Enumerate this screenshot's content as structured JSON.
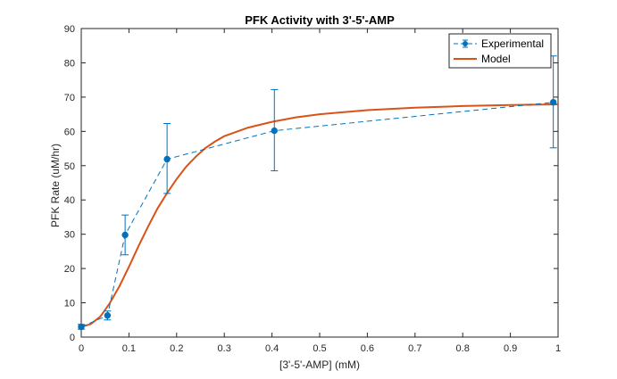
{
  "chart_data": {
    "type": "line",
    "title": "PFK Activity with 3'-5'-AMP",
    "xlabel": "[3'-5'-AMP] (mM)",
    "ylabel": "PFK Rate (uM/hr)",
    "xlim": [
      0,
      1
    ],
    "ylim": [
      0,
      90
    ],
    "xticks": [
      "0",
      "0.1",
      "0.2",
      "0.3",
      "0.4",
      "0.5",
      "0.6",
      "0.7",
      "0.8",
      "0.9",
      "1"
    ],
    "yticks": [
      "0",
      "10",
      "20",
      "30",
      "40",
      "50",
      "60",
      "70",
      "80",
      "90"
    ],
    "grid": false,
    "legend_position": "top-right",
    "series": [
      {
        "name": "Experimental",
        "style": "dashed-with-markers-and-errorbars",
        "color": "#0072BD",
        "x": [
          0,
          0.055,
          0.092,
          0.18,
          0.405,
          0.99
        ],
        "y": [
          3.0,
          6.3,
          29.8,
          51.9,
          60.2,
          68.5
        ],
        "err_low": [
          0.7,
          1.3,
          5.8,
          10.0,
          11.7,
          13.3
        ],
        "err_high": [
          0.7,
          1.3,
          5.8,
          10.4,
          12.0,
          13.5
        ]
      },
      {
        "name": "Model",
        "style": "solid",
        "color": "#D95319",
        "x": [
          0,
          0.02,
          0.04,
          0.06,
          0.08,
          0.1,
          0.12,
          0.14,
          0.16,
          0.18,
          0.2,
          0.22,
          0.24,
          0.26,
          0.28,
          0.3,
          0.35,
          0.4,
          0.45,
          0.5,
          0.6,
          0.7,
          0.8,
          0.9,
          1.0
        ],
        "y": [
          3.0,
          3.8,
          6.0,
          9.9,
          14.8,
          20.5,
          26.5,
          32.2,
          37.5,
          42.0,
          46.1,
          49.7,
          52.6,
          55.1,
          57.0,
          58.6,
          61.1,
          62.8,
          64.1,
          65.0,
          66.2,
          66.9,
          67.4,
          67.7,
          67.9
        ]
      }
    ]
  }
}
